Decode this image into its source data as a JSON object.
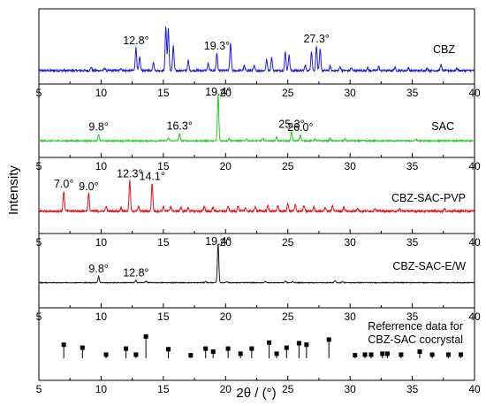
{
  "chart_data": {
    "type": "line",
    "xlabel": "2θ / (°)",
    "ylabel": "Intensity",
    "xlim": [
      5,
      40
    ],
    "xticks": [
      5,
      10,
      15,
      20,
      25,
      30,
      35,
      40
    ],
    "grid": false,
    "panels": [
      {
        "name": "CBZ",
        "label": "CBZ",
        "color": "#1f1fe0",
        "baseline": 0.05,
        "peaks": [
          [
            9.2,
            0.08
          ],
          [
            10.3,
            0.05
          ],
          [
            11.6,
            0.06
          ],
          [
            12.8,
            0.52
          ],
          [
            13.1,
            0.3
          ],
          [
            14.2,
            0.2
          ],
          [
            15.2,
            1.0
          ],
          [
            15.4,
            0.95
          ],
          [
            15.8,
            0.55
          ],
          [
            17.0,
            0.22
          ],
          [
            18.6,
            0.16
          ],
          [
            19.3,
            0.4
          ],
          [
            20.4,
            0.6
          ],
          [
            21.5,
            0.1
          ],
          [
            22.3,
            0.1
          ],
          [
            23.3,
            0.25
          ],
          [
            23.7,
            0.3
          ],
          [
            24.8,
            0.42
          ],
          [
            25.1,
            0.36
          ],
          [
            26.4,
            0.12
          ],
          [
            26.9,
            0.44
          ],
          [
            27.3,
            0.56
          ],
          [
            27.6,
            0.48
          ],
          [
            28.4,
            0.1
          ],
          [
            29.2,
            0.08
          ],
          [
            30.1,
            0.06
          ],
          [
            31.4,
            0.07
          ],
          [
            32.3,
            0.09
          ],
          [
            33.6,
            0.07
          ],
          [
            34.7,
            0.06
          ],
          [
            36.2,
            0.05
          ],
          [
            37.3,
            0.13
          ],
          [
            38.6,
            0.05
          ]
        ],
        "annotations": [
          {
            "x": 12.8,
            "text": "12.8°"
          },
          {
            "x": 19.3,
            "text": "19.3°"
          },
          {
            "x": 27.3,
            "text": "27.3°"
          }
        ]
      },
      {
        "name": "SAC",
        "label": "SAC",
        "color": "#22c922",
        "baseline": 0.03,
        "peaks": [
          [
            9.8,
            0.14
          ],
          [
            15.4,
            0.06
          ],
          [
            16.3,
            0.16
          ],
          [
            19.4,
            1.0
          ],
          [
            20.3,
            0.06
          ],
          [
            21.7,
            0.04
          ],
          [
            23.0,
            0.05
          ],
          [
            24.1,
            0.08
          ],
          [
            25.3,
            0.2
          ],
          [
            26.0,
            0.13
          ],
          [
            27.2,
            0.04
          ],
          [
            28.4,
            0.05
          ],
          [
            29.6,
            0.04
          ],
          [
            35.3,
            0.04
          ]
        ],
        "annotations": [
          {
            "x": 9.8,
            "text": "9.8°"
          },
          {
            "x": 16.3,
            "text": "16.3°"
          },
          {
            "x": 19.4,
            "text": "19.4°"
          },
          {
            "x": 25.3,
            "text": "25.3°"
          },
          {
            "x": 26.0,
            "text": "26.0°"
          }
        ]
      },
      {
        "name": "CBZ-SAC-PVP",
        "label": "CBZ-SAC-PVP",
        "color": "#e0141c",
        "baseline": 0.06,
        "peaks": [
          [
            7.0,
            0.52
          ],
          [
            9.0,
            0.46
          ],
          [
            10.4,
            0.12
          ],
          [
            11.6,
            0.1
          ],
          [
            12.3,
            0.78
          ],
          [
            13.0,
            0.12
          ],
          [
            14.1,
            0.72
          ],
          [
            15.0,
            0.12
          ],
          [
            15.6,
            0.13
          ],
          [
            16.4,
            0.1
          ],
          [
            17.0,
            0.1
          ],
          [
            18.3,
            0.12
          ],
          [
            19.0,
            0.1
          ],
          [
            20.2,
            0.12
          ],
          [
            21.0,
            0.14
          ],
          [
            21.6,
            0.1
          ],
          [
            22.4,
            0.12
          ],
          [
            23.4,
            0.14
          ],
          [
            24.2,
            0.14
          ],
          [
            25.0,
            0.2
          ],
          [
            25.6,
            0.16
          ],
          [
            26.3,
            0.14
          ],
          [
            27.1,
            0.12
          ],
          [
            28.0,
            0.1
          ],
          [
            28.6,
            0.16
          ],
          [
            29.5,
            0.1
          ],
          [
            30.6,
            0.09
          ],
          [
            32.0,
            0.08
          ],
          [
            34.0,
            0.06
          ],
          [
            37.6,
            0.06
          ]
        ],
        "annotations": [
          {
            "x": 7.0,
            "text": "7.0°"
          },
          {
            "x": 9.0,
            "text": "9.0°"
          },
          {
            "x": 12.3,
            "text": "12.3°"
          },
          {
            "x": 14.1,
            "text": "14.1°"
          }
        ]
      },
      {
        "name": "CBZ-SAC-E/W",
        "label": "CBZ-SAC-E/W",
        "color": "#1a1a1a",
        "baseline": 0.02,
        "peaks": [
          [
            9.8,
            0.16
          ],
          [
            12.8,
            0.06
          ],
          [
            13.6,
            0.04
          ],
          [
            18.4,
            0.03
          ],
          [
            19.4,
            1.0
          ],
          [
            20.1,
            0.03
          ],
          [
            23.2,
            0.03
          ],
          [
            24.8,
            0.04
          ],
          [
            25.4,
            0.03
          ],
          [
            28.8,
            0.05
          ],
          [
            29.4,
            0.03
          ]
        ],
        "annotations": [
          {
            "x": 9.8,
            "text": "9.8°"
          },
          {
            "x": 12.8,
            "text": "12.8°"
          },
          {
            "x": 19.4,
            "text": "19.4°"
          }
        ]
      },
      {
        "name": "Referrence data for CBZ-SAC cocrystal",
        "label_lines": [
          "Referrence data for",
          "CBZ-SAC cocrystal"
        ],
        "type": "stick",
        "color": "#000000",
        "sticks": [
          [
            7.0,
            0.45
          ],
          [
            8.5,
            0.35
          ],
          [
            10.4,
            0.12
          ],
          [
            12.0,
            0.32
          ],
          [
            12.8,
            0.12
          ],
          [
            13.6,
            0.72
          ],
          [
            15.4,
            0.3
          ],
          [
            17.2,
            0.1
          ],
          [
            18.4,
            0.32
          ],
          [
            19.0,
            0.22
          ],
          [
            20.2,
            0.32
          ],
          [
            21.2,
            0.15
          ],
          [
            22.1,
            0.32
          ],
          [
            23.5,
            0.52
          ],
          [
            24.1,
            0.15
          ],
          [
            24.9,
            0.35
          ],
          [
            25.9,
            0.5
          ],
          [
            26.5,
            0.45
          ],
          [
            28.3,
            0.62
          ],
          [
            30.4,
            0.1
          ],
          [
            31.2,
            0.12
          ],
          [
            31.7,
            0.12
          ],
          [
            32.6,
            0.15
          ],
          [
            33.0,
            0.15
          ],
          [
            34.1,
            0.12
          ],
          [
            35.6,
            0.22
          ],
          [
            36.6,
            0.12
          ],
          [
            37.9,
            0.12
          ],
          [
            38.9,
            0.12
          ]
        ]
      }
    ]
  }
}
